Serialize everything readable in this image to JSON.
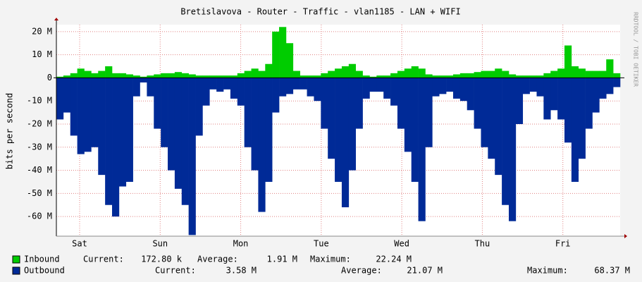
{
  "chart_data": {
    "type": "area",
    "title": "Bretislavova - Router - Traffic - vlan1185 - LAN + WIFI",
    "y_label": "bits per second",
    "watermark": "RRDTOOL / TOBI OETIKER",
    "day_labels": [
      "Sat",
      "Sun",
      "Mon",
      "Tue",
      "Wed",
      "Thu",
      "Fri"
    ],
    "ylim": [
      -68.5,
      23
    ],
    "yticks": [
      {
        "value": 20,
        "label": "20 M"
      },
      {
        "value": 10,
        "label": "10 M"
      },
      0,
      {
        "value": -10,
        "label": "-10 M"
      },
      {
        "value": -20,
        "label": "-20 M"
      },
      {
        "value": -30,
        "label": "-30 M"
      },
      {
        "value": -40,
        "label": "-40 M"
      },
      {
        "value": -50,
        "label": "-50 M"
      },
      {
        "value": -60,
        "label": "-60 M"
      }
    ],
    "grid": true,
    "stat_labels": [
      "Current:",
      "Average:",
      "Maximum:"
    ],
    "series": [
      {
        "name": "Inbound",
        "color": "#00cc00",
        "current": "172.80 k",
        "average": "1.91 M",
        "maximum": "22.24 M",
        "values": [
          0.5,
          1,
          2,
          4,
          3,
          2,
          3,
          5,
          2,
          2,
          1.5,
          1,
          0.5,
          1,
          1.5,
          2,
          2,
          2.5,
          2,
          1.5,
          1,
          1,
          1,
          1,
          1,
          1,
          2,
          3,
          4,
          3,
          6,
          20,
          22,
          15,
          3,
          1,
          1,
          1,
          2,
          3,
          4,
          5,
          6,
          3,
          1,
          0.5,
          1,
          1,
          2,
          3,
          4,
          5,
          4,
          1.5,
          1,
          1,
          1,
          1.5,
          2,
          2,
          2.5,
          3,
          3,
          4,
          3,
          1.5,
          1,
          1,
          1,
          1,
          2,
          3,
          4,
          14,
          5,
          4,
          3,
          3,
          3,
          8,
          2
        ]
      },
      {
        "name": "Outbound",
        "color": "#002a97",
        "current": "3.58 M",
        "average": "21.07 M",
        "maximum": "68.37 M",
        "values": [
          -18,
          -15,
          -25,
          -33,
          -32,
          -30,
          -42,
          -55,
          -60,
          -47,
          -45,
          -8,
          -2,
          -8,
          -22,
          -30,
          -40,
          -48,
          -55,
          -68,
          -25,
          -12,
          -5,
          -6,
          -5,
          -9,
          -12,
          -30,
          -40,
          -58,
          -45,
          -15,
          -8,
          -7,
          -5,
          -5,
          -8,
          -10,
          -22,
          -35,
          -45,
          -56,
          -40,
          -22,
          -9,
          -6,
          -6,
          -9,
          -12,
          -22,
          -32,
          -45,
          -62,
          -30,
          -8,
          -7,
          -6,
          -9,
          -10,
          -14,
          -22,
          -30,
          -35,
          -42,
          -55,
          -62,
          -20,
          -7,
          -6,
          -8,
          -18,
          -14,
          -18,
          -28,
          -45,
          -35,
          -22,
          -15,
          -9,
          -7,
          -4
        ]
      }
    ]
  }
}
